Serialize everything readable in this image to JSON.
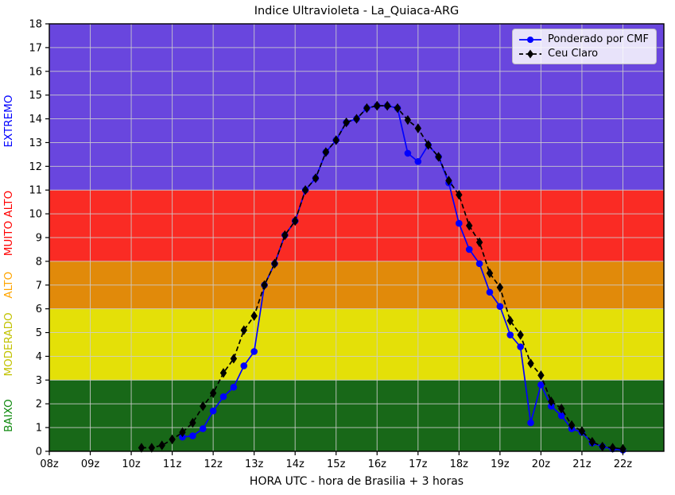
{
  "chart_data": {
    "type": "line",
    "title": "Indice Ultravioleta - La_Quiaca-ARG",
    "xlabel": "HORA UTC - hora de Brasilia + 3 horas",
    "ylabel": "",
    "xlim": [
      8,
      23
    ],
    "ylim": [
      0,
      18
    ],
    "grid": true,
    "grid_color": "#cccccc",
    "legend_position": "upper right",
    "x_ticks": [
      {
        "value": 8,
        "label": "08z"
      },
      {
        "value": 9,
        "label": "09z"
      },
      {
        "value": 10,
        "label": "10z"
      },
      {
        "value": 11,
        "label": "11z"
      },
      {
        "value": 12,
        "label": "12z"
      },
      {
        "value": 13,
        "label": "13z"
      },
      {
        "value": 14,
        "label": "14z"
      },
      {
        "value": 15,
        "label": "15z"
      },
      {
        "value": 16,
        "label": "16z"
      },
      {
        "value": 17,
        "label": "17z"
      },
      {
        "value": 18,
        "label": "18z"
      },
      {
        "value": 19,
        "label": "19z"
      },
      {
        "value": 20,
        "label": "20z"
      },
      {
        "value": 21,
        "label": "21z"
      },
      {
        "value": 22,
        "label": "22z"
      }
    ],
    "y_ticks": [
      0,
      1,
      2,
      3,
      4,
      5,
      6,
      7,
      8,
      9,
      10,
      11,
      12,
      13,
      14,
      15,
      16,
      17,
      18
    ],
    "bands": [
      {
        "label": "BAIXO",
        "from": 0,
        "to": 3,
        "color": "#186818",
        "label_color": "#108a10",
        "label_v": 1.5
      },
      {
        "label": "MODERADO",
        "from": 3,
        "to": 6,
        "color": "#e4e008",
        "label_color": "#c2c200",
        "label_v": 4.5
      },
      {
        "label": "ALTO",
        "from": 6,
        "to": 8,
        "color": "#e18a0a",
        "label_color": "#ffa500",
        "label_v": 7.0
      },
      {
        "label": "MUITO ALTO",
        "from": 8,
        "to": 11,
        "color": "#fa2b24",
        "label_color": "#ff0000",
        "label_v": 9.6
      },
      {
        "label": "EXTREMO",
        "from": 11,
        "to": 18,
        "color": "#6946de",
        "label_color": "#0000ff",
        "label_v": 13.9
      }
    ],
    "series": [
      {
        "name": "Ponderado por CMF",
        "color": "#0000ff",
        "line": "solid",
        "marker": "circle",
        "points": [
          [
            11.25,
            0.6
          ],
          [
            11.5,
            0.65
          ],
          [
            11.75,
            0.95
          ],
          [
            12.0,
            1.7
          ],
          [
            12.25,
            2.3
          ],
          [
            12.5,
            2.7
          ],
          [
            12.75,
            3.6
          ],
          [
            13.0,
            4.2
          ],
          [
            13.25,
            7.0
          ],
          [
            13.5,
            7.9
          ],
          [
            13.75,
            9.1
          ],
          [
            14.0,
            9.7
          ],
          [
            14.25,
            11.0
          ],
          [
            14.5,
            11.5
          ],
          [
            14.75,
            12.6
          ],
          [
            15.0,
            13.1
          ],
          [
            15.25,
            13.85
          ],
          [
            15.5,
            14.0
          ],
          [
            15.75,
            14.45
          ],
          [
            16.0,
            14.55
          ],
          [
            16.25,
            14.55
          ],
          [
            16.5,
            14.45
          ],
          [
            16.75,
            12.55
          ],
          [
            17.0,
            12.2
          ],
          [
            17.25,
            12.9
          ],
          [
            17.5,
            12.4
          ],
          [
            17.75,
            11.3
          ],
          [
            18.0,
            9.6
          ],
          [
            18.25,
            8.5
          ],
          [
            18.5,
            7.9
          ],
          [
            18.75,
            6.7
          ],
          [
            19.0,
            6.1
          ],
          [
            19.25,
            4.9
          ],
          [
            19.5,
            4.4
          ],
          [
            19.75,
            1.2
          ],
          [
            20.0,
            2.8
          ],
          [
            20.25,
            1.9
          ],
          [
            20.5,
            1.5
          ],
          [
            20.75,
            0.95
          ],
          [
            21.0,
            0.8
          ],
          [
            21.25,
            0.35
          ],
          [
            21.5,
            0.2
          ],
          [
            21.75,
            0.1
          ],
          [
            22.0,
            0.05
          ]
        ]
      },
      {
        "name": "Ceu Claro",
        "color": "#000000",
        "line": "dashed",
        "marker": "diamond",
        "points": [
          [
            10.25,
            0.15
          ],
          [
            10.5,
            0.15
          ],
          [
            10.75,
            0.25
          ],
          [
            11.0,
            0.5
          ],
          [
            11.25,
            0.8
          ],
          [
            11.5,
            1.2
          ],
          [
            11.75,
            1.9
          ],
          [
            12.0,
            2.45
          ],
          [
            12.25,
            3.3
          ],
          [
            12.5,
            3.9
          ],
          [
            12.75,
            5.1
          ],
          [
            13.0,
            5.7
          ],
          [
            13.25,
            7.0
          ],
          [
            13.5,
            7.9
          ],
          [
            13.75,
            9.1
          ],
          [
            14.0,
            9.7
          ],
          [
            14.25,
            11.0
          ],
          [
            14.5,
            11.5
          ],
          [
            14.75,
            12.6
          ],
          [
            15.0,
            13.1
          ],
          [
            15.25,
            13.85
          ],
          [
            15.5,
            14.0
          ],
          [
            15.75,
            14.45
          ],
          [
            16.0,
            14.55
          ],
          [
            16.25,
            14.55
          ],
          [
            16.5,
            14.45
          ],
          [
            16.75,
            13.95
          ],
          [
            17.0,
            13.6
          ],
          [
            17.25,
            12.9
          ],
          [
            17.5,
            12.4
          ],
          [
            17.75,
            11.4
          ],
          [
            18.0,
            10.8
          ],
          [
            18.25,
            9.5
          ],
          [
            18.5,
            8.8
          ],
          [
            18.75,
            7.5
          ],
          [
            19.0,
            6.9
          ],
          [
            19.25,
            5.5
          ],
          [
            19.5,
            4.9
          ],
          [
            19.75,
            3.7
          ],
          [
            20.0,
            3.2
          ],
          [
            20.25,
            2.1
          ],
          [
            20.5,
            1.8
          ],
          [
            20.75,
            1.1
          ],
          [
            21.0,
            0.85
          ],
          [
            21.25,
            0.4
          ],
          [
            21.5,
            0.2
          ],
          [
            21.75,
            0.15
          ],
          [
            22.0,
            0.1
          ]
        ]
      }
    ]
  }
}
